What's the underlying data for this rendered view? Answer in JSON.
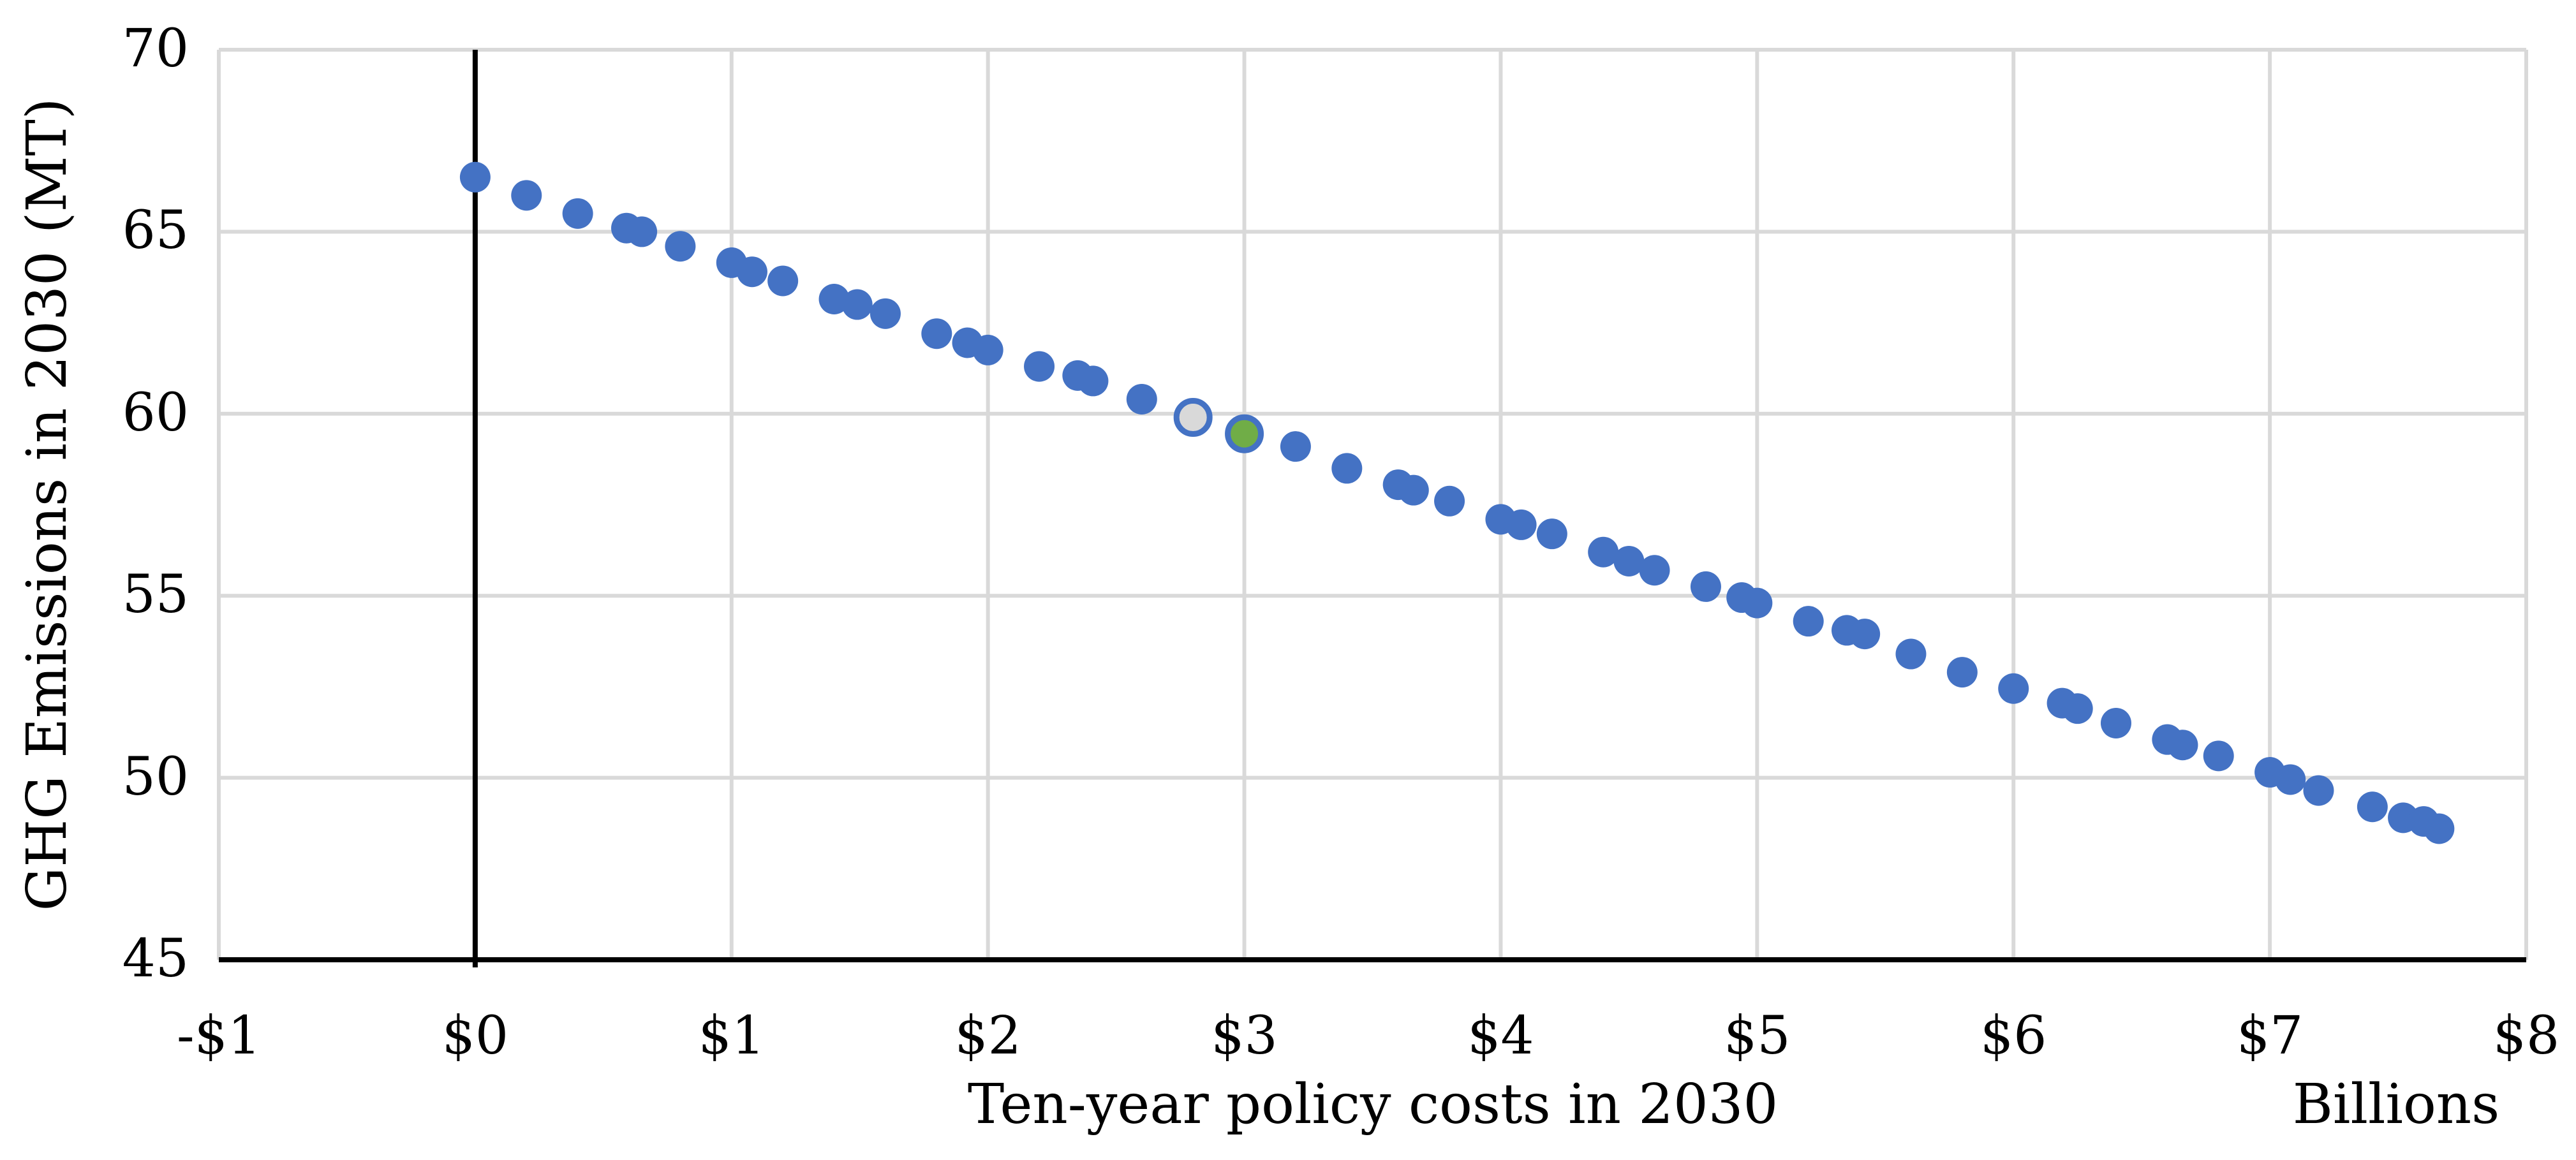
{
  "chart_data": {
    "type": "scatter",
    "title": "",
    "xlabel": "Ten-year policy costs in 2030",
    "ylabel": "GHG Emissions in 2030 (MT)",
    "x_units_label": "Billions",
    "xlim": [
      -1,
      8
    ],
    "ylim": [
      45,
      70
    ],
    "grid": true,
    "legend": "none",
    "colors": {
      "point_blue": "#4472C4",
      "point_gray_fill": "#D9D9D9",
      "point_green_fill": "#70AD47",
      "point_ring": "#4472C4",
      "gridline": "#D9D9D9",
      "axis_line": "#000000",
      "zero_line": "#000000"
    },
    "x_ticks": [
      {
        "v": -1,
        "label": "-$1"
      },
      {
        "v": 0,
        "label": "$0"
      },
      {
        "v": 1,
        "label": "$1"
      },
      {
        "v": 2,
        "label": "$2"
      },
      {
        "v": 3,
        "label": "$3"
      },
      {
        "v": 4,
        "label": "$4"
      },
      {
        "v": 5,
        "label": "$5"
      },
      {
        "v": 6,
        "label": "$6"
      },
      {
        "v": 7,
        "label": "$7"
      },
      {
        "v": 8,
        "label": "$8"
      }
    ],
    "y_ticks": [
      {
        "v": 45,
        "label": "45"
      },
      {
        "v": 50,
        "label": "50"
      },
      {
        "v": 55,
        "label": "55"
      },
      {
        "v": 60,
        "label": "60"
      },
      {
        "v": 65,
        "label": "65"
      },
      {
        "v": 70,
        "label": "70"
      }
    ],
    "series": [
      {
        "name": "policy-portfolio-points",
        "marker": "circle",
        "color": "#4472C4",
        "points": [
          [
            0.0,
            66.5
          ],
          [
            0.2,
            66.0
          ],
          [
            0.4,
            65.5
          ],
          [
            0.59,
            65.1
          ],
          [
            0.65,
            65.0
          ],
          [
            0.8,
            64.6
          ],
          [
            1.0,
            64.15
          ],
          [
            1.08,
            63.9
          ],
          [
            1.2,
            63.65
          ],
          [
            1.4,
            63.15
          ],
          [
            1.49,
            63.0
          ],
          [
            1.6,
            62.75
          ],
          [
            1.8,
            62.2
          ],
          [
            1.92,
            61.95
          ],
          [
            2.0,
            61.75
          ],
          [
            2.2,
            61.3
          ],
          [
            2.35,
            61.05
          ],
          [
            2.41,
            60.9
          ],
          [
            2.6,
            60.4
          ],
          [
            3.2,
            59.1
          ],
          [
            3.4,
            58.5
          ],
          [
            3.6,
            58.05
          ],
          [
            3.66,
            57.9
          ],
          [
            3.8,
            57.6
          ],
          [
            4.0,
            57.1
          ],
          [
            4.08,
            56.95
          ],
          [
            4.2,
            56.7
          ],
          [
            4.4,
            56.2
          ],
          [
            4.5,
            55.95
          ],
          [
            4.6,
            55.7
          ],
          [
            4.8,
            55.25
          ],
          [
            4.94,
            54.95
          ],
          [
            5.0,
            54.8
          ],
          [
            5.2,
            54.3
          ],
          [
            5.35,
            54.05
          ],
          [
            5.42,
            53.95
          ],
          [
            5.6,
            53.4
          ],
          [
            5.8,
            52.9
          ],
          [
            6.0,
            52.45
          ],
          [
            6.19,
            52.05
          ],
          [
            6.25,
            51.9
          ],
          [
            6.4,
            51.5
          ],
          [
            6.6,
            51.05
          ],
          [
            6.66,
            50.9
          ],
          [
            6.8,
            50.6
          ],
          [
            7.0,
            50.15
          ],
          [
            7.08,
            49.95
          ],
          [
            7.19,
            49.65
          ],
          [
            7.4,
            49.2
          ],
          [
            7.52,
            48.9
          ],
          [
            7.6,
            48.8
          ],
          [
            7.66,
            48.6
          ]
        ]
      },
      {
        "name": "highlighted-portfolio-gray",
        "marker": "ringed-circle",
        "color": "#D9D9D9",
        "outline": "#4472C4",
        "points": [
          [
            2.8,
            59.9
          ]
        ]
      },
      {
        "name": "highlighted-portfolio-green",
        "marker": "ringed-circle",
        "color": "#70AD47",
        "outline": "#4472C4",
        "points": [
          [
            3.0,
            59.45
          ]
        ]
      }
    ]
  }
}
